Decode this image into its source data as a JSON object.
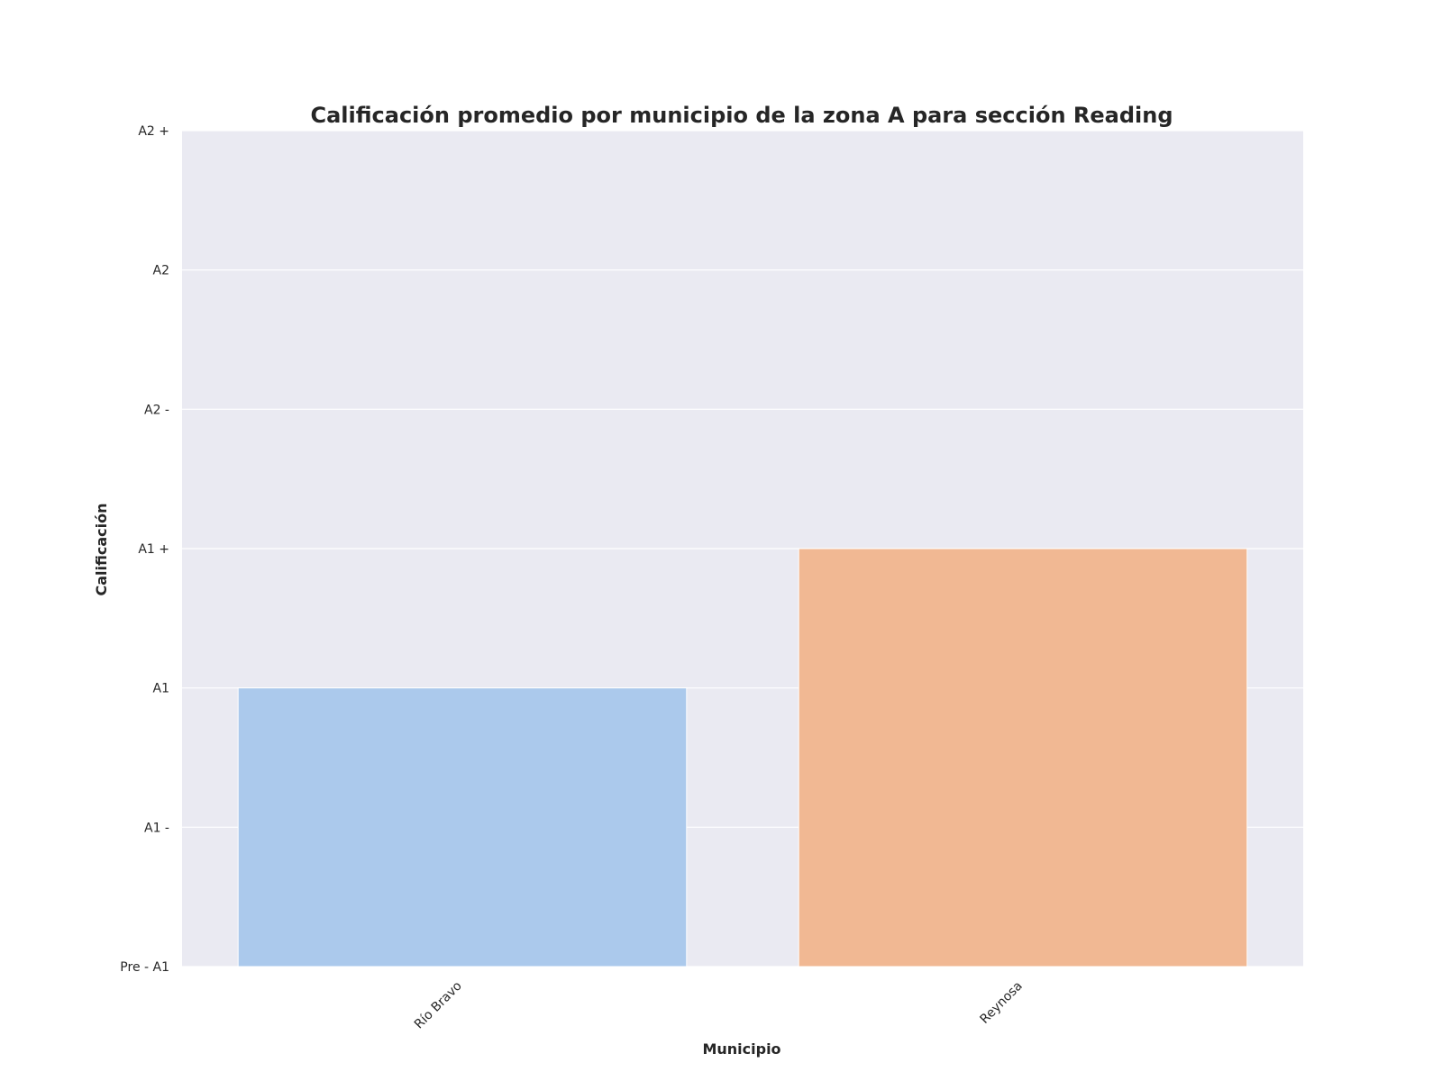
{
  "chart_data": {
    "type": "bar",
    "title": "Calificación promedio por municipio de la zona A para sección Reading",
    "xlabel": "Municipio",
    "ylabel": "Calificación",
    "categories": [
      "Río Bravo",
      "Reynosa"
    ],
    "values": [
      2,
      3
    ],
    "colors": [
      "#abc9ec",
      "#f1b893"
    ],
    "ylim": [
      0,
      6
    ],
    "yticks": [
      0,
      1,
      2,
      3,
      4,
      5,
      6
    ],
    "ytick_labels": [
      "Pre - A1",
      "A1 -",
      "A1",
      "A1 +",
      "A2 -",
      "A2",
      "A2 +"
    ],
    "grid": true,
    "plot_background": "#eaeaf2",
    "grid_color": "#ffffff"
  }
}
